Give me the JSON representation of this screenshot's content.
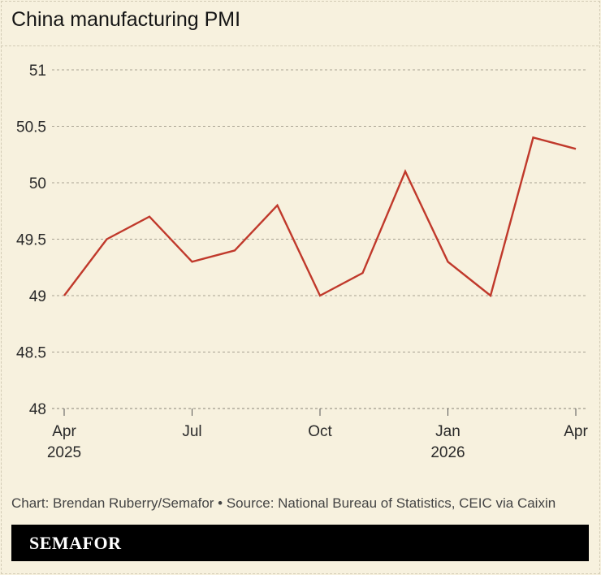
{
  "title": "China manufacturing PMI",
  "credit": "Chart: Brendan Ruberry/Semafor • Source: National Bureau of Statistics, CEIC via Caixin",
  "brand": "SEMAFOR",
  "colors": {
    "background": "#f7f1de",
    "line": "#c0392b",
    "brand_bar": "#000000"
  },
  "chart_data": {
    "type": "line",
    "title": "China manufacturing PMI",
    "x": [
      "2025-04",
      "2025-05",
      "2025-06",
      "2025-07",
      "2025-08",
      "2025-09",
      "2025-10",
      "2025-11",
      "2025-12",
      "2026-01",
      "2026-02",
      "2026-03",
      "2026-04"
    ],
    "series": [
      {
        "values": [
          49.0,
          49.5,
          49.7,
          49.3,
          49.4,
          49.8,
          49.0,
          49.2,
          50.1,
          49.3,
          49.0,
          50.4,
          50.3
        ]
      }
    ],
    "ylim": [
      48,
      51
    ],
    "yticks": [
      "48",
      "48.5",
      "49",
      "49.5",
      "50",
      "50.5",
      "51"
    ],
    "xticks": [
      {
        "x": "2025-04",
        "label": "Apr",
        "year": "2025"
      },
      {
        "x": "2025-07",
        "label": "Jul",
        "year": ""
      },
      {
        "x": "2025-10",
        "label": "Oct",
        "year": ""
      },
      {
        "x": "2026-01",
        "label": "Jan",
        "year": "2026"
      },
      {
        "x": "2026-04",
        "label": "Apr",
        "year": ""
      }
    ],
    "grid": true,
    "xlabel": "",
    "ylabel": ""
  }
}
